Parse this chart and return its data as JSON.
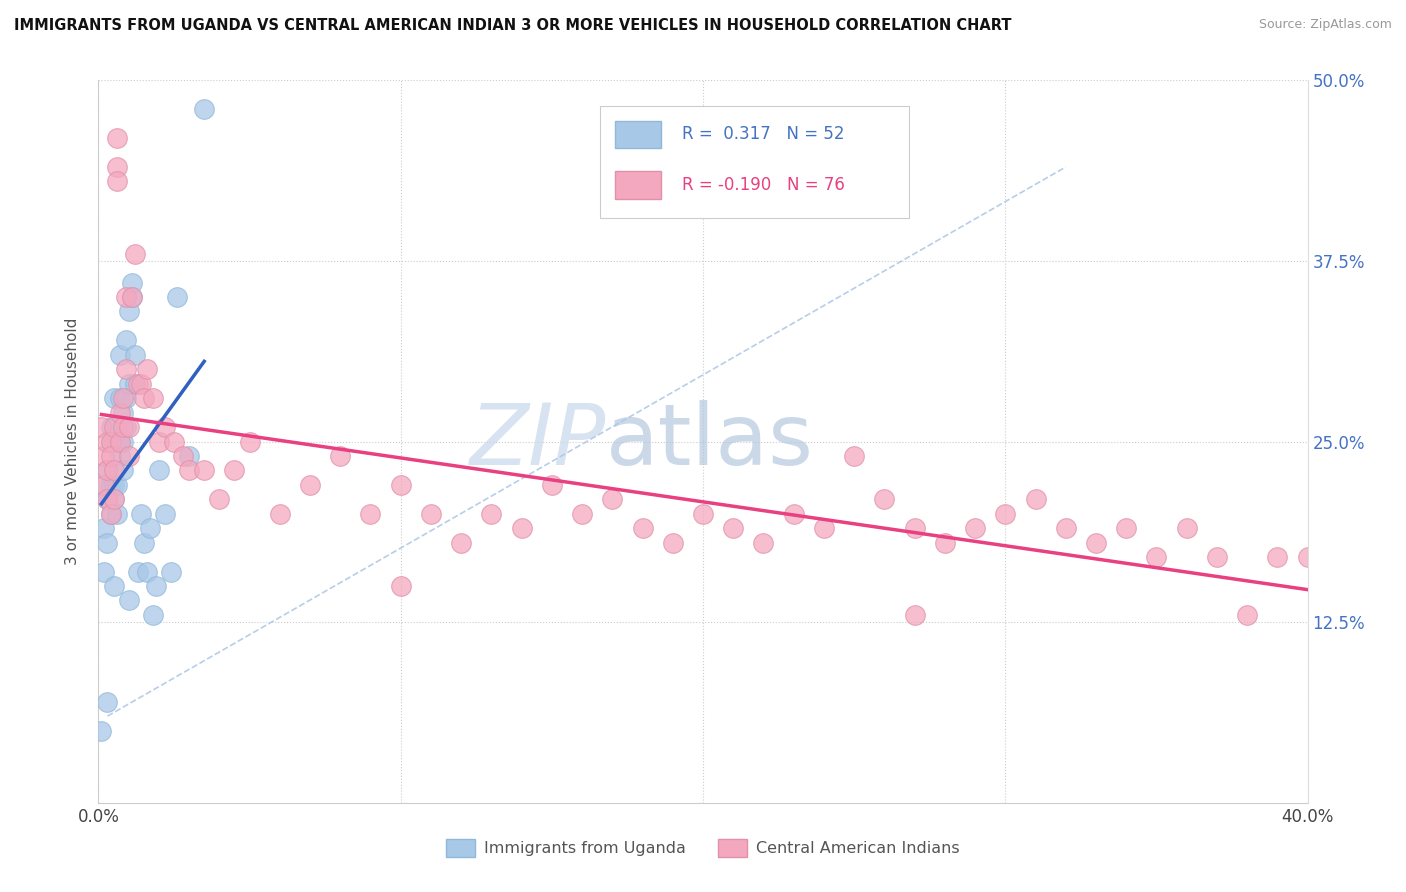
{
  "title": "IMMIGRANTS FROM UGANDA VS CENTRAL AMERICAN INDIAN 3 OR MORE VEHICLES IN HOUSEHOLD CORRELATION CHART",
  "source": "Source: ZipAtlas.com",
  "ylabel": "3 or more Vehicles in Household",
  "xlim": [
    0.0,
    0.4
  ],
  "ylim": [
    0.0,
    0.5
  ],
  "xtick_positions": [
    0.0,
    0.1,
    0.2,
    0.3,
    0.4
  ],
  "xticklabels": [
    "0.0%",
    "",
    "",
    "",
    "40.0%"
  ],
  "ytick_positions": [
    0.125,
    0.25,
    0.375,
    0.5
  ],
  "ytick_labels_right": [
    "12.5%",
    "25.0%",
    "37.5%",
    "50.0%"
  ],
  "r1": 0.317,
  "n1": 52,
  "r2": -0.19,
  "n2": 76,
  "color_uganda": "#a8c8e8",
  "color_central": "#f4a8c0",
  "line_color_uganda": "#3060c0",
  "line_color_central": "#e84080",
  "diagonal_color": "#b0c8e8",
  "watermark_zip": "ZIP",
  "watermark_atlas": "atlas",
  "uganda_x": [
    0.001,
    0.002,
    0.002,
    0.002,
    0.003,
    0.003,
    0.003,
    0.003,
    0.003,
    0.004,
    0.004,
    0.004,
    0.004,
    0.005,
    0.005,
    0.005,
    0.005,
    0.005,
    0.006,
    0.006,
    0.006,
    0.006,
    0.007,
    0.007,
    0.007,
    0.007,
    0.008,
    0.008,
    0.008,
    0.009,
    0.009,
    0.009,
    0.01,
    0.01,
    0.011,
    0.011,
    0.012,
    0.012,
    0.013,
    0.014,
    0.015,
    0.016,
    0.017,
    0.018,
    0.019,
    0.02,
    0.022,
    0.024,
    0.026,
    0.03,
    0.035,
    0.01
  ],
  "uganda_y": [
    0.05,
    0.22,
    0.19,
    0.16,
    0.21,
    0.23,
    0.18,
    0.21,
    0.07,
    0.26,
    0.22,
    0.25,
    0.2,
    0.28,
    0.25,
    0.22,
    0.21,
    0.15,
    0.25,
    0.26,
    0.22,
    0.2,
    0.28,
    0.25,
    0.31,
    0.24,
    0.27,
    0.25,
    0.23,
    0.32,
    0.28,
    0.26,
    0.29,
    0.34,
    0.35,
    0.36,
    0.29,
    0.31,
    0.16,
    0.2,
    0.18,
    0.16,
    0.19,
    0.13,
    0.15,
    0.23,
    0.2,
    0.16,
    0.35,
    0.24,
    0.48,
    0.14
  ],
  "central_x": [
    0.001,
    0.002,
    0.002,
    0.003,
    0.003,
    0.003,
    0.004,
    0.004,
    0.004,
    0.005,
    0.005,
    0.005,
    0.006,
    0.006,
    0.006,
    0.007,
    0.007,
    0.008,
    0.008,
    0.009,
    0.009,
    0.01,
    0.01,
    0.011,
    0.012,
    0.013,
    0.014,
    0.015,
    0.016,
    0.018,
    0.02,
    0.022,
    0.025,
    0.028,
    0.03,
    0.035,
    0.04,
    0.045,
    0.05,
    0.06,
    0.07,
    0.08,
    0.09,
    0.1,
    0.11,
    0.12,
    0.13,
    0.14,
    0.15,
    0.16,
    0.17,
    0.18,
    0.19,
    0.2,
    0.21,
    0.22,
    0.23,
    0.24,
    0.25,
    0.26,
    0.27,
    0.28,
    0.29,
    0.3,
    0.31,
    0.32,
    0.33,
    0.34,
    0.35,
    0.36,
    0.37,
    0.38,
    0.39,
    0.4,
    0.27,
    0.1
  ],
  "central_y": [
    0.26,
    0.24,
    0.22,
    0.25,
    0.23,
    0.21,
    0.25,
    0.24,
    0.2,
    0.26,
    0.23,
    0.21,
    0.44,
    0.46,
    0.43,
    0.27,
    0.25,
    0.28,
    0.26,
    0.3,
    0.35,
    0.26,
    0.24,
    0.35,
    0.38,
    0.29,
    0.29,
    0.28,
    0.3,
    0.28,
    0.25,
    0.26,
    0.25,
    0.24,
    0.23,
    0.23,
    0.21,
    0.23,
    0.25,
    0.2,
    0.22,
    0.24,
    0.2,
    0.22,
    0.2,
    0.18,
    0.2,
    0.19,
    0.22,
    0.2,
    0.21,
    0.19,
    0.18,
    0.2,
    0.19,
    0.18,
    0.2,
    0.19,
    0.24,
    0.21,
    0.19,
    0.18,
    0.19,
    0.2,
    0.21,
    0.19,
    0.18,
    0.19,
    0.17,
    0.19,
    0.17,
    0.13,
    0.17,
    0.17,
    0.13,
    0.15
  ]
}
